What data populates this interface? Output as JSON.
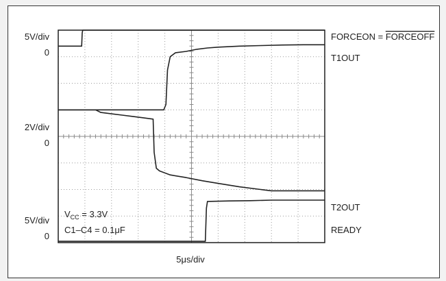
{
  "chart_data": {
    "type": "line",
    "x_unit_label": "5μs/div",
    "x_divisions": 10,
    "y_divisions": 8,
    "x_range": [
      0,
      50
    ],
    "y_range": [
      0,
      8
    ],
    "scale_labels": [
      {
        "scale": "5V/div",
        "zero": "0"
      },
      {
        "scale": "2V/div",
        "zero": "0"
      },
      {
        "scale": "5V/div",
        "zero": "0"
      }
    ],
    "annotation": {
      "vcc_prefix": "V",
      "vcc_sub": "CC",
      "vcc_rest": " = 3.3V",
      "cap_text": "C1–C4 = 0.1μF"
    },
    "series": [
      {
        "name": "FORCEON = FORCEOFF",
        "name_prefix": "FORCEON = ",
        "name_overline": "FORCEOFF",
        "x": [
          0,
          4.4,
          4.5,
          4.6,
          10,
          20,
          30,
          40,
          50
        ],
        "y": [
          7.4,
          7.4,
          7.9,
          8.0,
          8.0,
          8.0,
          8.0,
          8.0,
          8.0
        ]
      },
      {
        "name": "T1OUT",
        "x": [
          0,
          10,
          19.8,
          20.2,
          20.5,
          21,
          22,
          24,
          26,
          28,
          30,
          34,
          38,
          42,
          46,
          50
        ],
        "y": [
          5.0,
          5.0,
          5.0,
          5.2,
          6.5,
          7.0,
          7.15,
          7.2,
          7.28,
          7.33,
          7.36,
          7.4,
          7.42,
          7.44,
          7.45,
          7.45
        ]
      },
      {
        "name": "T2OUT",
        "x": [
          0,
          7,
          8,
          10,
          12,
          14,
          16,
          17.8,
          18.0,
          18.4,
          19,
          21,
          24,
          27,
          30,
          34,
          38,
          40,
          42,
          46,
          50
        ],
        "y": [
          5.0,
          5.0,
          4.9,
          4.85,
          4.8,
          4.75,
          4.7,
          4.65,
          3.4,
          2.8,
          2.7,
          2.55,
          2.45,
          2.33,
          2.23,
          2.1,
          2.0,
          1.95,
          1.95,
          1.95,
          1.95
        ],
        "label_left": "5V/div"
      },
      {
        "name": "READY",
        "x": [
          0,
          27.6,
          27.8,
          28.0,
          32,
          36,
          40,
          44,
          50
        ],
        "y": [
          0.05,
          0.05,
          1.3,
          1.55,
          1.57,
          1.58,
          1.6,
          1.6,
          1.6
        ]
      }
    ]
  }
}
